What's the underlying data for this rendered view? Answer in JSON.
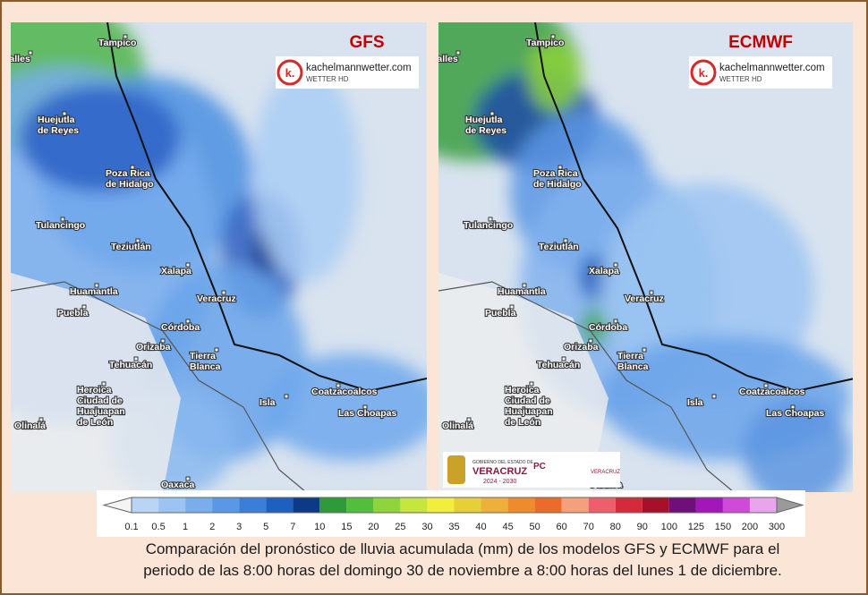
{
  "panels": [
    {
      "model": "GFS",
      "logo_text": "k.",
      "site": "kachelmannwetter.com",
      "tagline": "WETTER HD"
    },
    {
      "model": "ECMWF",
      "logo_text": "k.",
      "site": "kachelmannwetter.com",
      "tagline": "WETTER HD",
      "footer_logo": {
        "line1": "GOBIERNO DEL ESTADO DE",
        "name": "VERACRUZ",
        "years": "2024 - 2030",
        "pc": "PC",
        "right": "VERACRUZ"
      }
    }
  ],
  "map": {
    "cities": [
      [
        "Tampico"
      ],
      [
        "Valles"
      ],
      [
        "Huejutla",
        "de Reyes"
      ],
      [
        "Poza Rica",
        "de Hidalgo"
      ],
      [
        "Tulancingo"
      ],
      [
        "Teziutlán"
      ],
      [
        "Xalapa"
      ],
      [
        "Huamantla"
      ],
      [
        "Puebla"
      ],
      [
        "Veracruz"
      ],
      [
        "Córdoba"
      ],
      [
        "Orizaba"
      ],
      [
        "Tierra",
        "Blanca"
      ],
      [
        "Tehuacán"
      ],
      [
        "Heroica",
        "Ciudad de",
        "Huajuapan",
        "de León"
      ],
      [
        "Isla"
      ],
      [
        "Coatzacoalcos"
      ],
      [
        "Las Choapas"
      ],
      [
        "Olinalá"
      ],
      [
        "Oaxaca"
      ]
    ]
  },
  "legend": {
    "labels": [
      0.1,
      0.5,
      1,
      2,
      3,
      5,
      7,
      10,
      15,
      20,
      25,
      30,
      35,
      40,
      45,
      50,
      60,
      70,
      80,
      90,
      100,
      125,
      150,
      200,
      300
    ],
    "colors": [
      "#b9d5f6",
      "#9cc4f2",
      "#79aeec",
      "#5a97e4",
      "#3c7dd8",
      "#1f5fbd",
      "#0c3a86",
      "#2f9a3a",
      "#52be3c",
      "#8ed43c",
      "#c6e63e",
      "#f2ef3c",
      "#e7cf38",
      "#efb03a",
      "#ee8b2c",
      "#ec6a2a",
      "#f4a07a",
      "#ee5f6b",
      "#d62a3a",
      "#a8102a",
      "#6e0f7a",
      "#a117b8",
      "#d04ad8",
      "#e8a4ec"
    ],
    "low_color": "#f4f4f4",
    "high_color": "#9a9a9a"
  },
  "caption": [
    "Comparación del pronóstico de lluvia acumulada (mm) de los modelos GFS y ECMWF para el",
    "periodo de las 8:00 horas del domingo 30 de noviembre a 8:00 horas del lunes 1 de diciembre."
  ]
}
